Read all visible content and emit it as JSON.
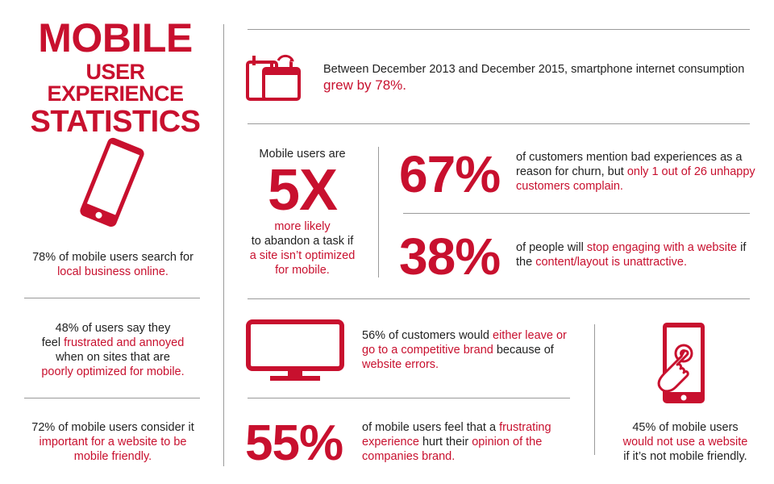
{
  "title": {
    "line1": "MOBILE",
    "line2": "USER EXPERIENCE",
    "line3": "STATISTICS"
  },
  "colors": {
    "accent": "#c8102e",
    "text": "#222222",
    "divider": "#9a9a9a"
  },
  "icons": [
    "smartphone-icon",
    "calendar-icon",
    "monitor-icon",
    "touch-phone-icon"
  ],
  "left": {
    "stat1": {
      "text": "78% of mobile users search for",
      "highlight": "local business online."
    },
    "stat2": {
      "l1": "48% of users say they",
      "l2a": "feel ",
      "l2b": "frustrated and annoyed",
      "l3": "when on sites that are",
      "l4": "poorly optimized for mobile."
    },
    "stat3": {
      "l1": "72% of mobile users consider it",
      "l2": "important for a website to be",
      "l3": "mobile friendly."
    }
  },
  "top": {
    "text": "Between December 2013 and December 2015, smartphone internet consumption",
    "highlight": "grew by 78%."
  },
  "fivex": {
    "pre": "Mobile users are",
    "big": "5X",
    "l1": "more likely",
    "l2": "to abandon a task if",
    "l3": "a site isn’t optimized",
    "l4": "for mobile."
  },
  "stat67": {
    "big": "67%",
    "l1": "of customers mention bad experiences as a",
    "l2a": "reason for churn, but ",
    "l2b": "only 1 out of 26 unhappy",
    "l3": "customers complain."
  },
  "stat38": {
    "big": "38%",
    "l1a": "of people will ",
    "l1b": "stop engaging with a website",
    "l1c": " if",
    "l2a": "the ",
    "l2b": "content/layout is unattractive."
  },
  "stat56": {
    "l1a": "56% of customers would ",
    "l1b": "either leave or",
    "l2a": "go to a competitive brand",
    "l2b": " because of",
    "l3": "website errors."
  },
  "stat55": {
    "big": "55%",
    "l1a": "of mobile users feel that a ",
    "l1b": "frustrating",
    "l2a": "experience",
    "l2b": " hurt their ",
    "l2c": "opinion of the",
    "l3": "companies brand."
  },
  "stat45": {
    "l1": "45% of mobile users",
    "l2": "would not use a website",
    "l3": "if it’s not mobile friendly."
  }
}
